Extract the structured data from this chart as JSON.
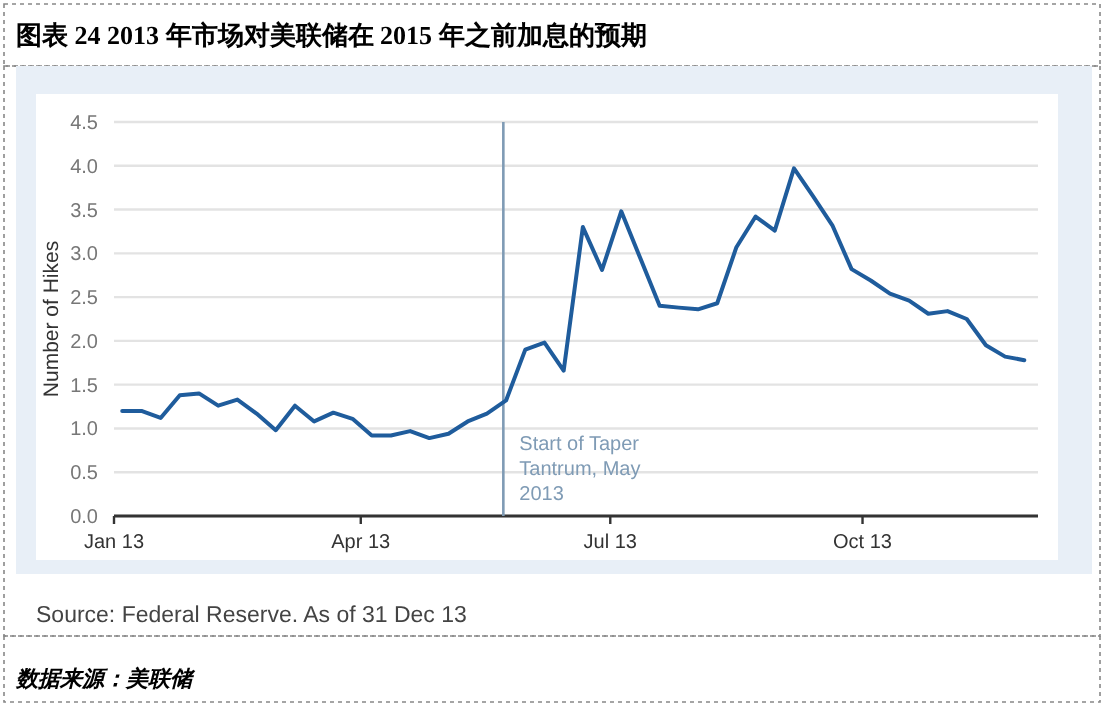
{
  "chart_data": {
    "type": "line",
    "title": "图表 24 2013 年市场对美联储在 2015 年之前加息的预期",
    "ylabel": "Number of Hikes",
    "annotations": [
      "Source: Federal Reserve. As of 31 Dec 13",
      "数据来源：美联储"
    ],
    "x": [
      "2013-01-04",
      "2013-01-11",
      "2013-01-18",
      "2013-01-25",
      "2013-02-01",
      "2013-02-08",
      "2013-02-15",
      "2013-02-22",
      "2013-03-01",
      "2013-03-08",
      "2013-03-15",
      "2013-03-22",
      "2013-03-29",
      "2013-04-05",
      "2013-04-12",
      "2013-04-19",
      "2013-04-26",
      "2013-05-03",
      "2013-05-10",
      "2013-05-17",
      "2013-05-24",
      "2013-05-31",
      "2013-06-07",
      "2013-06-14",
      "2013-06-21",
      "2013-06-28",
      "2013-07-05",
      "2013-07-12",
      "2013-07-19",
      "2013-07-26",
      "2013-08-02",
      "2013-08-09",
      "2013-08-16",
      "2013-08-23",
      "2013-08-30",
      "2013-09-06",
      "2013-09-13",
      "2013-09-20",
      "2013-09-27",
      "2013-10-04",
      "2013-10-11",
      "2013-10-18",
      "2013-10-25",
      "2013-11-01",
      "2013-11-08",
      "2013-11-15",
      "2013-11-22",
      "2013-11-29"
    ],
    "series": [
      {
        "color": "#1f5c9c",
        "values": [
          1.2,
          1.2,
          1.12,
          1.38,
          1.4,
          1.26,
          1.33,
          1.17,
          0.98,
          1.26,
          1.08,
          1.18,
          1.11,
          0.92,
          0.92,
          0.97,
          0.89,
          0.94,
          1.08,
          1.17,
          1.32,
          1.9,
          1.98,
          1.66,
          3.3,
          2.81,
          3.48,
          2.94,
          2.4,
          2.38,
          2.36,
          2.43,
          3.07,
          3.42,
          3.26,
          3.97,
          3.65,
          3.32,
          2.82,
          2.69,
          2.54,
          2.46,
          2.31,
          2.34,
          2.25,
          1.95,
          1.82,
          1.78
        ]
      }
    ],
    "xlim": [
      "2013-01-01",
      "2013-12-04"
    ],
    "xticks": [
      {
        "value": "2013-01-01",
        "label": "Jan 13"
      },
      {
        "value": "2013-04-01",
        "label": "Apr 13"
      },
      {
        "value": "2013-07-01",
        "label": "Jul 13"
      },
      {
        "value": "2013-10-01",
        "label": "Oct 13"
      }
    ],
    "ylim": [
      0,
      4.5
    ],
    "yticks": [
      {
        "value": 0,
        "label": "0.0"
      },
      0.5,
      {
        "value": 1,
        "label": "1.0"
      },
      1.5,
      {
        "value": 2,
        "label": "2.0"
      },
      2.5,
      {
        "value": 3,
        "label": "3.0"
      },
      3.5,
      {
        "value": 4,
        "label": "4.0"
      },
      4.5
    ],
    "grid": "y",
    "ref_lines": [
      {
        "axis": "x",
        "value": "2013-05-23",
        "label": "Start of Taper Tantrum, May 2013",
        "color": "#7f9bb5"
      }
    ]
  }
}
